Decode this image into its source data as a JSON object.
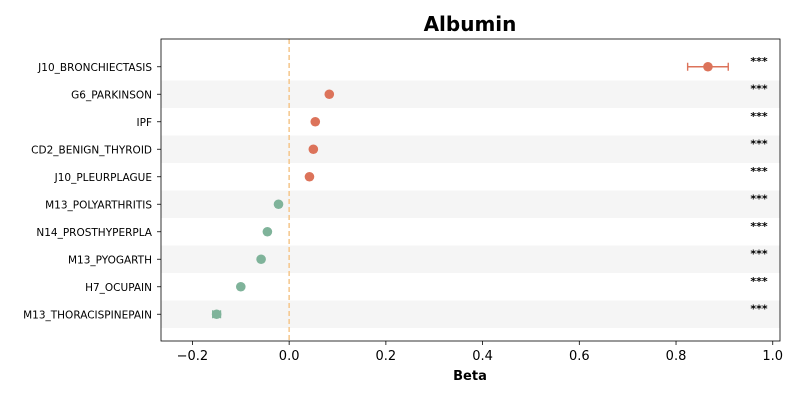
{
  "chart_data": {
    "type": "scatter",
    "title": "Albumin",
    "xlabel": "Beta",
    "ylabel": "",
    "xlim": [
      -0.265,
      1.015
    ],
    "xticks": [
      -0.2,
      0.0,
      0.2,
      0.4,
      0.6,
      0.8,
      1.0
    ],
    "xtick_labels": [
      "−0.2",
      "0.0",
      "0.2",
      "0.4",
      "0.6",
      "0.8",
      "1.0"
    ],
    "reference_line": 0.0,
    "grid": false,
    "colors": {
      "positive": "#dc735a",
      "negative": "#7fb39a",
      "reference": "#f5c992",
      "band": "#f5f5f5"
    },
    "points": [
      {
        "label": "J10_BRONCHIECTASIS",
        "beta": 0.866,
        "ci_low": 0.824,
        "ci_high": 0.908,
        "significance": "***"
      },
      {
        "label": "G6_PARKINSON",
        "beta": 0.083,
        "ci_low": 0.083,
        "ci_high": 0.083,
        "significance": "***"
      },
      {
        "label": "IPF",
        "beta": 0.054,
        "ci_low": 0.054,
        "ci_high": 0.054,
        "significance": "***"
      },
      {
        "label": "CD2_BENIGN_THYROID",
        "beta": 0.05,
        "ci_low": 0.05,
        "ci_high": 0.05,
        "significance": "***"
      },
      {
        "label": "J10_PLEURPLAGUE",
        "beta": 0.042,
        "ci_low": 0.042,
        "ci_high": 0.042,
        "significance": "***"
      },
      {
        "label": "M13_POLYARTHRITIS",
        "beta": -0.022,
        "ci_low": -0.022,
        "ci_high": -0.022,
        "significance": "***"
      },
      {
        "label": "N14_PROSTHYPERPLA",
        "beta": -0.045,
        "ci_low": -0.045,
        "ci_high": -0.045,
        "significance": "***"
      },
      {
        "label": "M13_PYOGARTH",
        "beta": -0.058,
        "ci_low": -0.058,
        "ci_high": -0.058,
        "significance": "***"
      },
      {
        "label": "H7_OCUPAIN",
        "beta": -0.1,
        "ci_low": -0.1,
        "ci_high": -0.1,
        "significance": "***"
      },
      {
        "label": "M13_THORACISPINEPAIN",
        "beta": -0.15,
        "ci_low": -0.158,
        "ci_high": -0.142,
        "significance": "***"
      }
    ]
  }
}
